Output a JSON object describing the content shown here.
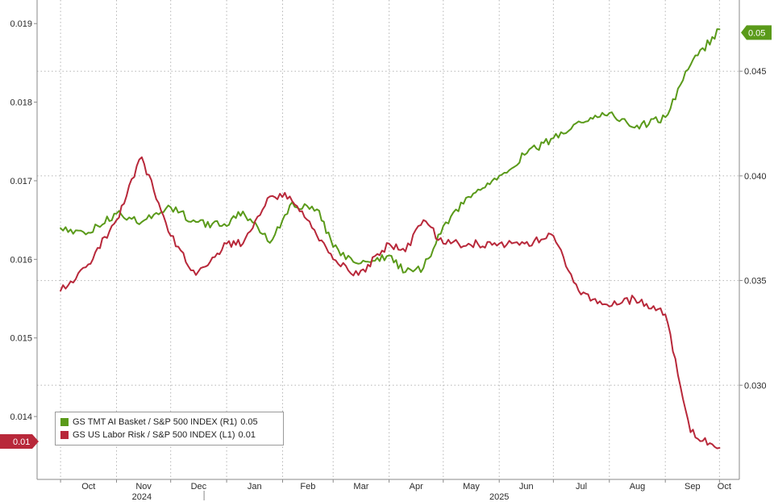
{
  "chart_data": {
    "type": "line",
    "x_ticks": [
      "Oct",
      "Nov",
      "Dec",
      "Jan",
      "Feb",
      "Mar",
      "Apr",
      "May",
      "Jun",
      "Jul",
      "Aug",
      "Sep",
      "Oct"
    ],
    "year_labels": [
      "2024",
      "2025"
    ],
    "y_left": {
      "ticks": [
        "0.014",
        "0.015",
        "0.016",
        "0.017",
        "0.018",
        "0.019"
      ],
      "range": [
        0.0132,
        0.0193
      ]
    },
    "y_right": {
      "ticks": [
        "0.030",
        "0.035",
        "0.040",
        "0.045"
      ],
      "range": [
        0.0255,
        0.0484
      ]
    },
    "grid": "dotted horizontal and vertical",
    "legend_placement": "bottom-left",
    "series": [
      {
        "name": "GS TMT AI Basket / S&P 500 INDEX (R1)",
        "last_value_label": "0.05",
        "axis": "right",
        "color": "#5a9a1a",
        "x": [
          "2024-10-01",
          "2024-10-15",
          "2024-11-01",
          "2024-11-15",
          "2024-12-01",
          "2024-12-15",
          "2025-01-01",
          "2025-01-10",
          "2025-01-25",
          "2025-02-05",
          "2025-02-20",
          "2025-03-01",
          "2025-03-15",
          "2025-04-01",
          "2025-04-10",
          "2025-04-20",
          "2025-05-01",
          "2025-05-15",
          "2025-06-01",
          "2025-06-15",
          "2025-07-01",
          "2025-07-15",
          "2025-08-01",
          "2025-08-15",
          "2025-09-01",
          "2025-09-15",
          "2025-10-01"
        ],
        "y": [
          0.0375,
          0.0372,
          0.0382,
          0.0378,
          0.0385,
          0.0378,
          0.0376,
          0.0383,
          0.0368,
          0.0386,
          0.0384,
          0.0366,
          0.0358,
          0.0362,
          0.0354,
          0.0356,
          0.0376,
          0.039,
          0.04,
          0.041,
          0.0418,
          0.0426,
          0.043,
          0.0423,
          0.0428,
          0.0453,
          0.047
        ]
      },
      {
        "name": "GS US Labor Risk / S&P 500 INDEX (L1)",
        "last_value_label": "0.01",
        "axis": "left",
        "color": "#b8283a",
        "x": [
          "2024-10-01",
          "2024-10-15",
          "2024-11-01",
          "2024-11-15",
          "2024-12-01",
          "2024-12-15",
          "2025-01-01",
          "2025-01-10",
          "2025-01-25",
          "2025-02-05",
          "2025-02-20",
          "2025-03-01",
          "2025-03-15",
          "2025-04-01",
          "2025-04-10",
          "2025-04-20",
          "2025-05-01",
          "2025-05-15",
          "2025-06-01",
          "2025-06-15",
          "2025-07-01",
          "2025-07-15",
          "2025-08-01",
          "2025-08-15",
          "2025-09-01",
          "2025-09-15",
          "2025-10-01"
        ],
        "y": [
          0.0156,
          0.0159,
          0.0165,
          0.0173,
          0.0163,
          0.0158,
          0.0162,
          0.0162,
          0.0168,
          0.0168,
          0.0163,
          0.016,
          0.0158,
          0.0162,
          0.0161,
          0.0165,
          0.0162,
          0.0162,
          0.0162,
          0.0162,
          0.0163,
          0.0156,
          0.0154,
          0.0155,
          0.0153,
          0.0138,
          0.0136
        ]
      }
    ],
    "badges": {
      "right": "0.05",
      "left": "0.01"
    }
  }
}
